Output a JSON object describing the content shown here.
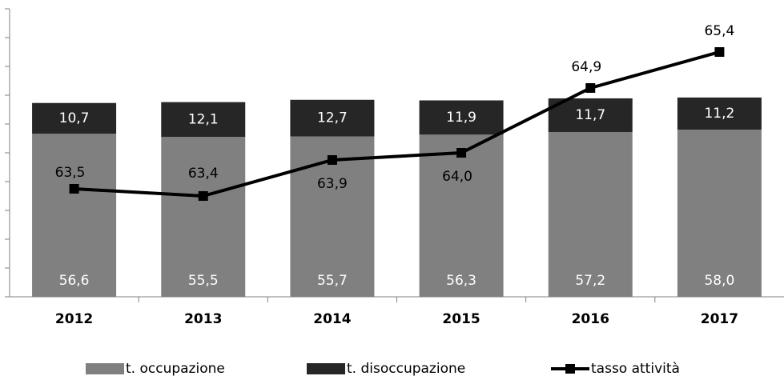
{
  "chart_data": {
    "type": "bar_line",
    "categories": [
      "2012",
      "2013",
      "2014",
      "2015",
      "2016",
      "2017"
    ],
    "series": [
      {
        "name": "t. occupazione",
        "color": "#808080",
        "values": [
          56.6,
          55.5,
          55.7,
          56.3,
          57.2,
          58.0
        ],
        "value_labels": [
          "56,6",
          "55,5",
          "55,7",
          "56,3",
          "57,2",
          "58,0"
        ]
      },
      {
        "name": "t. disoccupazione",
        "color": "#262626",
        "values": [
          10.7,
          12.1,
          12.7,
          11.9,
          11.7,
          11.2
        ],
        "value_labels": [
          "10,7",
          "12,1",
          "12,7",
          "11,9",
          "11,7",
          "11,2"
        ]
      },
      {
        "name": "tasso attività",
        "color": "#000000",
        "axis": "y2",
        "values": [
          63.5,
          63.4,
          63.9,
          64.0,
          64.9,
          65.4
        ],
        "value_labels": [
          "63,5",
          "63,4",
          "63,9",
          "64,0",
          "64,9",
          "65,4"
        ]
      }
    ],
    "ylim": [
      0,
      100
    ],
    "yticks": [
      0,
      10,
      20,
      30,
      40,
      50,
      60,
      70,
      80,
      90,
      100
    ],
    "y2lim": [
      62,
      66
    ]
  }
}
